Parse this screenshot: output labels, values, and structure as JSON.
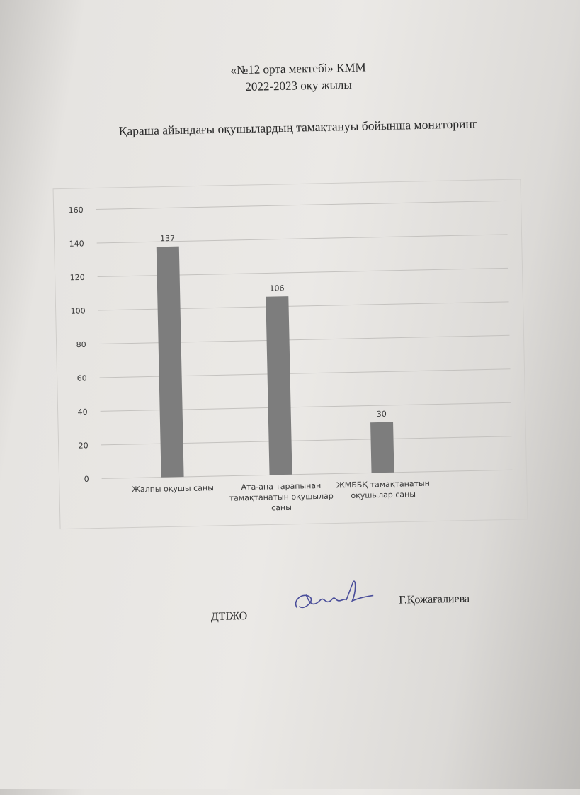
{
  "document": {
    "org": "«№12  орта  мектебі» КММ",
    "year": "2022-2023  оқу жылы",
    "signature_position": "ДТІЖО",
    "signature_name": "Г.Қожағалиева"
  },
  "chart_data": {
    "type": "bar",
    "title": "Қараша айындағы оқушылардың тамақтануы бойынша мониторинг",
    "categories": [
      [
        "Жалпы оқушы саны"
      ],
      [
        "Ата-ана тарапынан",
        "тамақтанатын оқушылар",
        "саны"
      ],
      [
        "ЖМББҚ тамақтанатын",
        "оқушылар саны"
      ]
    ],
    "values": [
      137,
      106,
      30
    ],
    "data_labels": [
      "137",
      "106",
      "30"
    ],
    "yticks": [
      "0",
      "20",
      "40",
      "60",
      "80",
      "100",
      "120",
      "140",
      "160"
    ],
    "ylim": [
      0,
      160
    ],
    "grid": true,
    "bar_color": "#7d7d7d",
    "xlabel": "",
    "ylabel": ""
  }
}
